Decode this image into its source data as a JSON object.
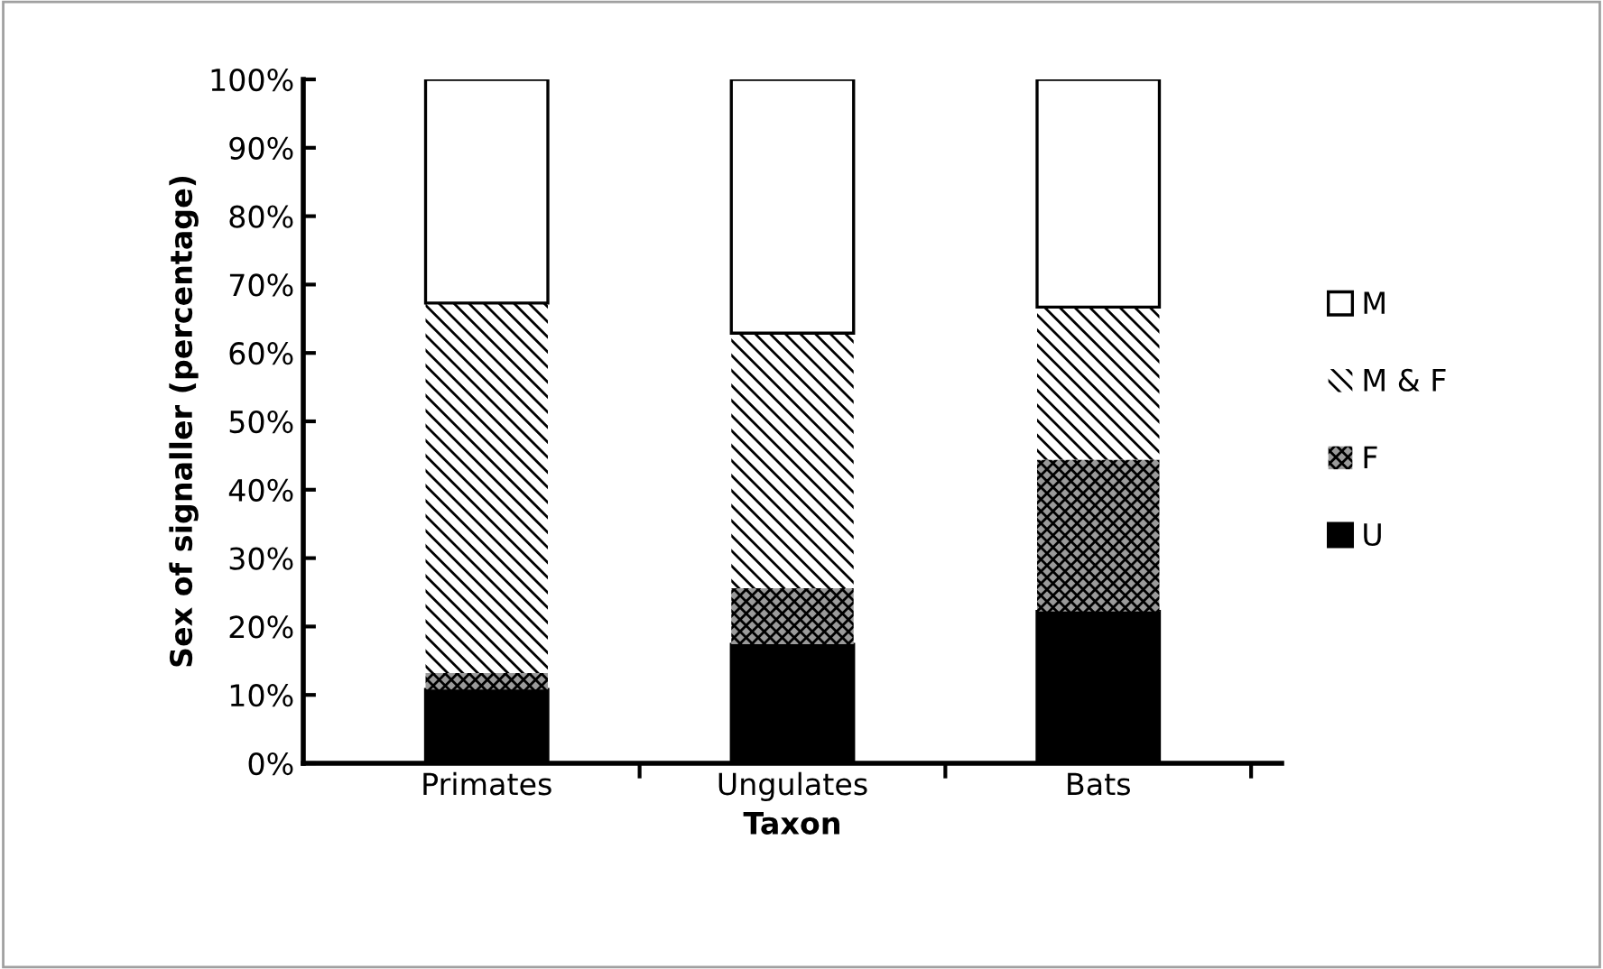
{
  "chart_data": {
    "type": "bar",
    "stacked": true,
    "xlabel": "Taxon",
    "ylabel": "Sex of signaller (percentage)",
    "categories": [
      "Primates",
      "Ungulates",
      "Bats"
    ],
    "series": [
      {
        "name": "U",
        "color": "#000000",
        "values": [
          10.8,
          17.4,
          22.2
        ]
      },
      {
        "name": "F",
        "color": "#9a9a9a",
        "values": [
          2.4,
          8.2,
          22.2
        ]
      },
      {
        "name": "M & F",
        "color": "#ffffff",
        "values": [
          54.1,
          37.3,
          22.3
        ]
      },
      {
        "name": "M",
        "color": "#ffffff",
        "values": [
          32.7,
          37.1,
          33.3
        ]
      }
    ],
    "ylim": [
      0,
      100
    ],
    "yticks": [
      {
        "value": 0,
        "label": "0%"
      },
      {
        "value": 10,
        "label": "10%"
      },
      {
        "value": 20,
        "label": "20%"
      },
      {
        "value": 30,
        "label": "30%"
      },
      {
        "value": 40,
        "label": "40%"
      },
      {
        "value": 50,
        "label": "50%"
      },
      {
        "value": 60,
        "label": "60%"
      },
      {
        "value": 70,
        "label": "70%"
      },
      {
        "value": 80,
        "label": "80%"
      },
      {
        "value": 90,
        "label": "90%"
      },
      {
        "value": 100,
        "label": "100%"
      }
    ],
    "grid": false,
    "legend": "right"
  }
}
